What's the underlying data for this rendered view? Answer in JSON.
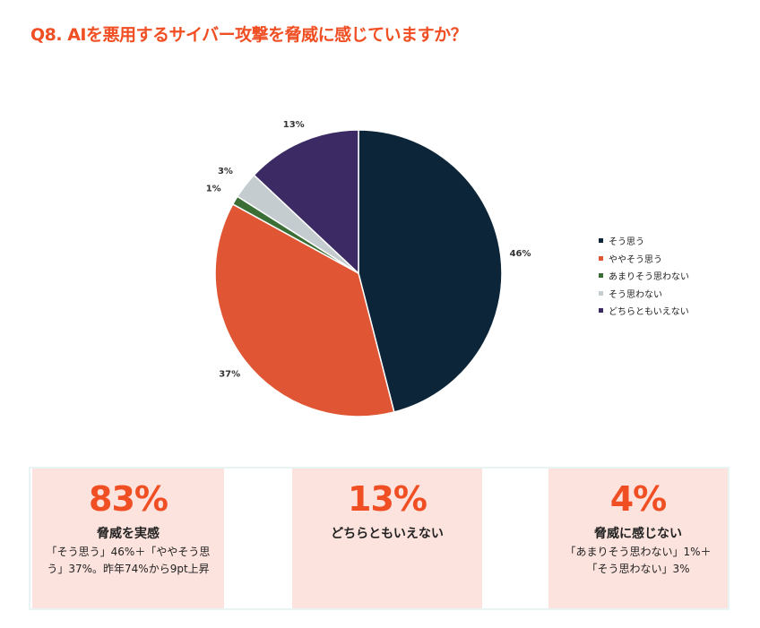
{
  "title": "Q8. AIを悪用するサイバー攻撃を脅威に感じていますか？",
  "chart_data": {
    "type": "pie",
    "title": "Q8. AIを悪用するサイバー攻撃を脅威に感じていますか？",
    "labels": [
      "そう思う",
      "ややそう思う",
      "あまりそう思わない",
      "そう思わない",
      "どちらともいえない"
    ],
    "values": [
      46,
      37,
      1,
      3,
      13
    ],
    "value_labels": [
      "46%",
      "37%",
      "1%",
      "3%",
      "13%"
    ],
    "colors": [
      "#0d2538",
      "#e05533",
      "#3a6e35",
      "#c5cccf",
      "#3b2a63"
    ],
    "legend_position": "right"
  },
  "cards": [
    {
      "big": "83%",
      "head": "脅威を実感",
      "sub": "「そう思う」46%＋「ややそう思う」37%。昨年74%から9pt上昇"
    },
    {
      "big": "13%",
      "head": "どちらともいえない",
      "sub": ""
    },
    {
      "big": "4%",
      "head": "脅威に感じない",
      "sub": "「あまりそう思わない」1%＋「そう思わない」3%"
    }
  ]
}
